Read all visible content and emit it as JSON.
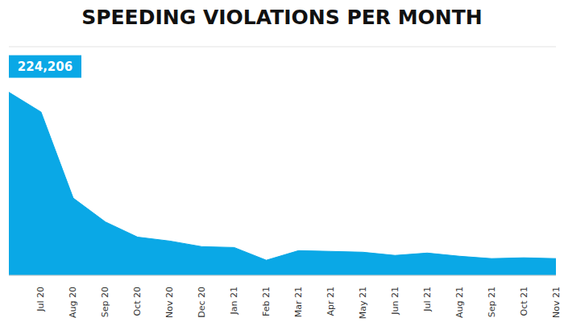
{
  "chart_data": {
    "type": "area",
    "title": "SPEEDING VIOLATIONS PER MONTH",
    "categories": [
      null,
      "Jul 20",
      "Aug 20",
      "Sep 20",
      "Oct 20",
      "Nov 20",
      "Dec 20",
      "Jan 21",
      "Feb 21",
      "Mar 21",
      "Apr 21",
      "May 21",
      "Jun 21",
      "Jul 21",
      "Aug 21",
      "Sep 21",
      "Oct 21",
      "Nov 21"
    ],
    "values": [
      224206,
      200000,
      94600,
      65400,
      46800,
      42000,
      35100,
      34100,
      18500,
      30200,
      29300,
      28300,
      24400,
      27300,
      23400,
      20500,
      21500,
      20500
    ],
    "value_labels": [
      "224,206",
      null,
      null,
      null,
      null,
      null,
      null,
      null,
      null,
      null,
      null,
      null,
      null,
      null,
      null,
      null,
      null,
      null
    ],
    "color": "#0aa8e6",
    "ylim": [
      0,
      280000
    ],
    "yticks": [
      0,
      56000,
      112000,
      168000,
      224000,
      280000
    ],
    "grid": true,
    "tick_labels": "x"
  }
}
